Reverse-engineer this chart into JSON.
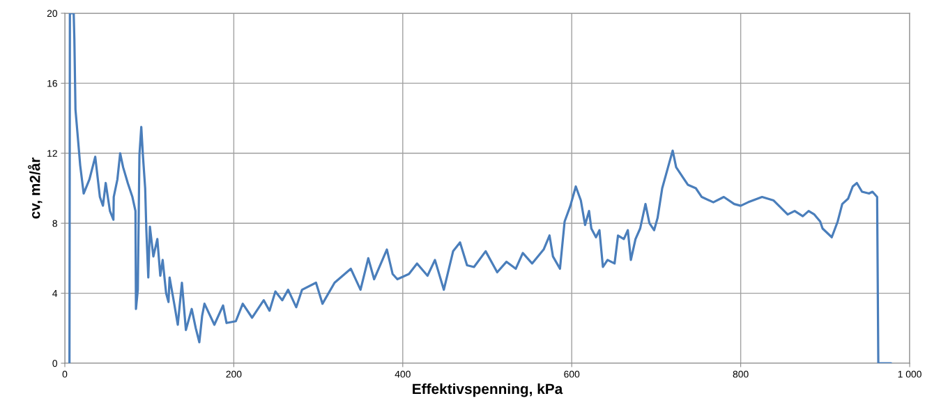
{
  "chart_data": {
    "type": "line",
    "xlabel": "Effektivspenning, kPa",
    "ylabel": "cv, m2/år",
    "xlim": [
      0,
      1000
    ],
    "xticks": [
      0,
      200,
      400,
      600,
      800,
      {
        "value": 1000,
        "label": "1 000"
      }
    ],
    "ylim": [
      0,
      20
    ],
    "yticks": [
      0,
      4,
      8,
      12,
      16,
      20
    ],
    "grid": true,
    "marker": "none",
    "line_style": "solid",
    "series": [
      {
        "color": "#4a7ebb",
        "x": [
          5.5,
          6,
          9.5,
          10.5,
          11.3,
          12.6,
          15.4,
          18.2,
          22.3,
          29.1,
          36,
          41.5,
          45.1,
          48.4,
          53.4,
          57.5,
          57.9,
          62.2,
          65.5,
          69,
          74.5,
          80,
          83.6,
          84.2,
          86.4,
          88.3,
          90.5,
          92.4,
          95.1,
          96.5,
          98.8,
          100.7,
          104.8,
          109.5,
          113,
          115.8,
          119.9,
          122.7,
          124,
          129.5,
          133.7,
          138.6,
          143.3,
          150.2,
          155,
          159.2,
          162.5,
          165.3,
          177,
          187.3,
          191.4,
          202.4,
          210.6,
          221.7,
          235.4,
          242.3,
          249.2,
          257.4,
          264.3,
          273.9,
          280.8,
          297.3,
          305,
          319.3,
          338.5,
          350,
          359.2,
          366.1,
          381.2,
          388,
          393.6,
          407.3,
          416.9,
          429.3,
          438.1,
          448.6,
          459.6,
          467.8,
          476.1,
          484.3,
          498.1,
          511.8,
          522.8,
          533.8,
          542.1,
          553.1,
          566.8,
          573.7,
          577.8,
          586.1,
          591.6,
          598.4,
          604.8,
          610.8,
          615.8,
          620.5,
          623.2,
          628.7,
          632.8,
          636.9,
          642.4,
          650.7,
          654.8,
          661.7,
          666.4,
          670,
          675.5,
          681,
          687.3,
          692,
          697.5,
          701.6,
          707.1,
          714,
          719.5,
          723.6,
          729.1,
          737.4,
          746.9,
          753.9,
          767.6,
          780,
          792.3,
          800,
          808.8,
          825.3,
          839,
          855.6,
          863.9,
          873.5,
          880.4,
          887.2,
          894.1,
          896.9,
          907.8,
          914.8,
          920.2,
          927.1,
          932.6,
          937.5,
          943.6,
          951.9,
          956,
          961.5,
          962.9,
          978
        ],
        "values": [
          0,
          20,
          20,
          20,
          18.5,
          14.5,
          12.9,
          11.3,
          9.7,
          10.5,
          11.8,
          9.5,
          9.0,
          10.3,
          8.7,
          8.2,
          9.5,
          10.5,
          12.0,
          11.2,
          10.3,
          9.5,
          8.7,
          3.1,
          4.2,
          11.9,
          13.5,
          11.9,
          10.0,
          7.6,
          4.9,
          7.8,
          6.1,
          7.1,
          5.0,
          5.9,
          4.0,
          3.5,
          4.9,
          3.4,
          2.2,
          4.6,
          1.9,
          3.1,
          2.0,
          1.2,
          2.7,
          3.4,
          2.2,
          3.3,
          2.3,
          2.4,
          3.4,
          2.6,
          3.6,
          3.0,
          4.1,
          3.6,
          4.2,
          3.2,
          4.2,
          4.6,
          3.4,
          4.6,
          5.4,
          4.2,
          6.0,
          4.8,
          6.5,
          5.1,
          4.8,
          5.1,
          5.7,
          5.0,
          5.9,
          4.2,
          6.4,
          6.9,
          5.6,
          5.5,
          6.4,
          5.2,
          5.8,
          5.4,
          6.3,
          5.7,
          6.5,
          7.3,
          6.1,
          5.4,
          8.1,
          9.0,
          10.1,
          9.3,
          7.9,
          8.7,
          7.7,
          7.2,
          7.6,
          5.5,
          5.9,
          5.7,
          7.3,
          7.1,
          7.6,
          5.9,
          7.1,
          7.7,
          9.1,
          8.0,
          7.6,
          8.3,
          10.0,
          11.2,
          12.15,
          11.2,
          10.8,
          10.2,
          10.0,
          9.5,
          9.2,
          9.5,
          9.1,
          9.0,
          9.2,
          9.5,
          9.3,
          8.5,
          8.7,
          8.4,
          8.7,
          8.5,
          8.1,
          7.7,
          7.2,
          8.1,
          9.1,
          9.4,
          10.1,
          10.3,
          9.8,
          9.7,
          9.8,
          9.5,
          0,
          0
        ]
      }
    ]
  }
}
